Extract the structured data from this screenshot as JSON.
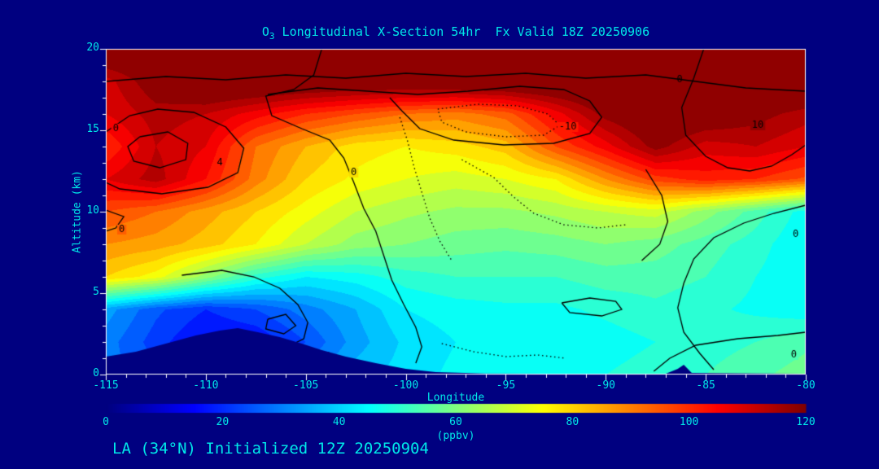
{
  "window": {
    "background": "#000080"
  },
  "colors": {
    "background": "#000080",
    "text_accent": "#00e8e8",
    "axis": "#ffffff",
    "contour": "#000000",
    "terrain": "#000080"
  },
  "chart_data": {
    "type": "heatmap",
    "title": "O3 Longitudinal X-Section 54hr  Fx Valid 18Z 20250906",
    "title_parts": {
      "prefix": "O",
      "sub": "3",
      "rest": " Longitudinal X-Section 54hr  Fx Valid 18Z 20250906"
    },
    "xlabel": "Longitude",
    "ylabel": "Altitude (km)",
    "footer": "LA (34°N) Initialized 12Z 20250904",
    "xlim": [
      -115,
      -80
    ],
    "ylim": [
      0,
      20
    ],
    "x_ticks": [
      -115,
      -110,
      -105,
      -100,
      -95,
      -90,
      -85,
      -80
    ],
    "y_ticks": [
      0,
      5,
      10,
      15,
      20
    ],
    "grid_lon": [
      -115,
      -112.5,
      -110,
      -107.5,
      -105,
      -102.5,
      -100,
      -97.5,
      -95,
      -92.5,
      -90,
      -87.5,
      -85,
      -82.5,
      -80
    ],
    "grid_alt": [
      0,
      2,
      4,
      6,
      8,
      10,
      12,
      14,
      16,
      18,
      20
    ],
    "values_ppbv": [
      [
        30,
        25,
        20,
        25,
        30,
        38,
        42,
        45,
        46,
        46,
        48,
        50,
        52,
        55,
        58
      ],
      [
        30,
        22,
        15,
        16,
        24,
        34,
        41,
        44,
        45,
        45,
        46,
        48,
        50,
        52,
        55
      ],
      [
        34,
        25,
        20,
        24,
        30,
        36,
        44,
        46,
        47,
        47,
        49,
        51,
        49,
        47,
        45
      ],
      [
        80,
        74,
        62,
        50,
        44,
        46,
        50,
        52,
        52,
        52,
        54,
        54,
        52,
        48,
        44
      ],
      [
        88,
        86,
        82,
        76,
        68,
        62,
        60,
        58,
        57,
        58,
        60,
        58,
        54,
        50,
        44
      ],
      [
        96,
        92,
        86,
        80,
        74,
        68,
        65,
        63,
        63,
        65,
        68,
        70,
        62,
        54,
        46
      ],
      [
        108,
        114,
        104,
        90,
        80,
        75,
        72,
        70,
        72,
        76,
        88,
        98,
        102,
        100,
        95
      ],
      [
        100,
        112,
        108,
        92,
        84,
        78,
        76,
        78,
        82,
        96,
        106,
        118,
        110,
        112,
        108
      ],
      [
        108,
        114,
        112,
        106,
        100,
        96,
        92,
        90,
        94,
        106,
        118,
        124,
        122,
        118,
        114
      ],
      [
        110,
        120,
        126,
        126,
        125,
        124,
        124,
        125,
        126,
        126,
        126,
        126,
        126,
        126,
        126
      ],
      [
        125,
        125,
        125,
        125,
        125,
        125,
        125,
        125,
        125,
        125,
        125,
        125,
        125,
        125,
        125
      ]
    ],
    "colorbar": {
      "min": 0,
      "max": 120,
      "ticks": [
        0,
        20,
        40,
        60,
        80,
        100,
        120
      ],
      "label": "(ppbv)",
      "colormap": "jet",
      "fill_step": 4
    },
    "terrain_profile": [
      [
        -115,
        0
      ],
      [
        -115,
        1.1
      ],
      [
        -113.5,
        1.4
      ],
      [
        -112,
        1.9
      ],
      [
        -110.5,
        2.4
      ],
      [
        -109.3,
        2.7
      ],
      [
        -108.4,
        2.85
      ],
      [
        -107.4,
        2.6
      ],
      [
        -106.3,
        2.3
      ],
      [
        -105.2,
        1.9
      ],
      [
        -104.2,
        1.5
      ],
      [
        -103,
        1.1
      ],
      [
        -101.5,
        0.7
      ],
      [
        -100,
        0.35
      ],
      [
        -98.5,
        0.15
      ],
      [
        -96,
        0.06
      ],
      [
        -90,
        0.04
      ],
      [
        -87,
        0.05
      ],
      [
        -86.4,
        0.35
      ],
      [
        -86.1,
        0.6
      ],
      [
        -85.7,
        0.1
      ],
      [
        -80,
        0.05
      ],
      [
        -80,
        0
      ]
    ],
    "contours": [
      {
        "style": "solid",
        "label": "0",
        "label_pos": [
          -114.5,
          15.1
        ],
        "points": [
          [
            -115,
            14.9
          ],
          [
            -113.8,
            15.9
          ],
          [
            -112.4,
            16.3
          ],
          [
            -110.6,
            16.1
          ],
          [
            -109.0,
            15.2
          ],
          [
            -108.1,
            13.9
          ],
          [
            -108.4,
            12.4
          ],
          [
            -109.9,
            11.5
          ],
          [
            -112.2,
            11.1
          ],
          [
            -114.3,
            11.4
          ],
          [
            -115,
            11.8
          ]
        ]
      },
      {
        "style": "solid",
        "points": [
          [
            -113.3,
            14.6
          ],
          [
            -111.9,
            14.9
          ],
          [
            -110.9,
            14.2
          ],
          [
            -111.0,
            13.2
          ],
          [
            -112.3,
            12.7
          ],
          [
            -113.6,
            13.1
          ],
          [
            -113.9,
            14.0
          ],
          [
            -113.3,
            14.6
          ]
        ]
      },
      {
        "style": "solid",
        "label": "0",
        "label_pos": [
          -102.6,
          12.4
        ],
        "points": [
          [
            -104.2,
            20
          ],
          [
            -104.6,
            18.4
          ],
          [
            -105.6,
            17.5
          ],
          [
            -107.0,
            17.1
          ],
          [
            -106.7,
            15.9
          ],
          [
            -105.2,
            15.1
          ],
          [
            -103.8,
            14.4
          ],
          [
            -103.1,
            13.3
          ],
          [
            -102.6,
            11.8
          ],
          [
            -102.1,
            10.2
          ],
          [
            -101.5,
            8.8
          ],
          [
            -101.1,
            7.3
          ],
          [
            -100.7,
            5.8
          ],
          [
            -100.1,
            4.3
          ],
          [
            -99.5,
            2.9
          ],
          [
            -99.2,
            1.7
          ],
          [
            -99.5,
            0.7
          ]
        ]
      },
      {
        "style": "solid",
        "points": [
          [
            -106.9,
            17.2
          ],
          [
            -104.4,
            17.6
          ],
          [
            -101.9,
            17.4
          ],
          [
            -99.4,
            17.2
          ],
          [
            -96.9,
            17.4
          ],
          [
            -94.3,
            17.7
          ],
          [
            -92.1,
            17.5
          ],
          [
            -90.8,
            16.8
          ],
          [
            -90.2,
            15.8
          ],
          [
            -90.8,
            14.8
          ],
          [
            -92.6,
            14.2
          ],
          [
            -95.1,
            14.1
          ],
          [
            -97.6,
            14.4
          ],
          [
            -99.3,
            15.1
          ],
          [
            -100.2,
            16.2
          ],
          [
            -100.8,
            17.0
          ]
        ]
      },
      {
        "style": "solid",
        "points": [
          [
            -115,
            18.0
          ],
          [
            -112,
            18.3
          ],
          [
            -109,
            18.1
          ],
          [
            -106,
            18.4
          ],
          [
            -103,
            18.2
          ],
          [
            -100,
            18.5
          ],
          [
            -97,
            18.3
          ],
          [
            -94,
            18.5
          ],
          [
            -91,
            18.2
          ],
          [
            -88,
            18.4
          ],
          [
            -85.5,
            18.0
          ],
          [
            -83,
            17.6
          ],
          [
            -80,
            17.4
          ]
        ]
      },
      {
        "style": "dotted",
        "label": "-10",
        "label_pos": [
          -91.9,
          15.2
        ],
        "points": [
          [
            -98.4,
            16.3
          ],
          [
            -96.4,
            16.6
          ],
          [
            -94.4,
            16.5
          ],
          [
            -92.9,
            16.0
          ],
          [
            -92.3,
            15.3
          ],
          [
            -93.1,
            14.7
          ],
          [
            -95.0,
            14.6
          ],
          [
            -97.0,
            14.9
          ],
          [
            -98.2,
            15.5
          ],
          [
            -98.4,
            16.3
          ]
        ]
      },
      {
        "style": "dotted",
        "points": [
          [
            -97.2,
            13.2
          ],
          [
            -95.6,
            12.1
          ],
          [
            -94.6,
            10.9
          ],
          [
            -93.6,
            9.9
          ],
          [
            -92.1,
            9.2
          ],
          [
            -90.4,
            9.0
          ],
          [
            -89.0,
            9.2
          ]
        ]
      },
      {
        "style": "dotted",
        "points": [
          [
            -100.3,
            15.8
          ],
          [
            -99.9,
            14.3
          ],
          [
            -99.6,
            12.8
          ],
          [
            -99.2,
            11.2
          ],
          [
            -98.8,
            9.6
          ],
          [
            -98.3,
            8.2
          ],
          [
            -97.7,
            7.0
          ]
        ]
      },
      {
        "style": "solid",
        "label": "10",
        "label_pos": [
          -82.4,
          15.3
        ],
        "points": [
          [
            -85.1,
            20
          ],
          [
            -85.6,
            18.2
          ],
          [
            -86.2,
            16.4
          ],
          [
            -86.0,
            14.7
          ],
          [
            -85.0,
            13.4
          ],
          [
            -83.9,
            12.7
          ],
          [
            -82.8,
            12.5
          ],
          [
            -81.7,
            12.8
          ],
          [
            -80.7,
            13.5
          ],
          [
            -80,
            14.1
          ]
        ]
      },
      {
        "style": "solid",
        "points": [
          [
            -88.0,
            12.6
          ],
          [
            -87.2,
            11.0
          ],
          [
            -86.9,
            9.4
          ],
          [
            -87.3,
            8.0
          ],
          [
            -88.2,
            7.0
          ]
        ]
      },
      {
        "style": "solid",
        "label": "0",
        "label_pos": [
          -80.5,
          8.6
        ],
        "points": [
          [
            -80,
            10.4
          ],
          [
            -81.6,
            9.9
          ],
          [
            -83.1,
            9.3
          ],
          [
            -84.6,
            8.4
          ],
          [
            -85.6,
            7.1
          ],
          [
            -86.1,
            5.6
          ],
          [
            -86.4,
            4.1
          ],
          [
            -86.1,
            2.6
          ],
          [
            -85.3,
            1.3
          ],
          [
            -84.6,
            0.3
          ]
        ]
      },
      {
        "style": "solid",
        "label": "0",
        "label_pos": [
          -103.9,
          1.1
        ],
        "points": [
          [
            -111.2,
            6.1
          ],
          [
            -109.2,
            6.4
          ],
          [
            -107.6,
            6.0
          ],
          [
            -106.3,
            5.3
          ],
          [
            -105.4,
            4.3
          ],
          [
            -104.9,
            3.2
          ],
          [
            -105.1,
            2.2
          ],
          [
            -106.1,
            1.6
          ],
          [
            -107.6,
            1.8
          ],
          [
            -109.1,
            2.6
          ]
        ]
      },
      {
        "style": "solid",
        "points": [
          [
            -106.9,
            3.4
          ],
          [
            -106.0,
            3.7
          ],
          [
            -105.5,
            3.0
          ],
          [
            -106.1,
            2.5
          ],
          [
            -107.0,
            2.8
          ],
          [
            -106.9,
            3.4
          ]
        ]
      },
      {
        "style": "solid",
        "label": "0",
        "label_pos": [
          -114.2,
          8.9
        ],
        "points": [
          [
            -115,
            10.1
          ],
          [
            -114.1,
            9.7
          ],
          [
            -114.5,
            9.0
          ],
          [
            -115,
            8.8
          ]
        ]
      },
      {
        "style": "solid",
        "points": [
          [
            -92.2,
            4.4
          ],
          [
            -90.8,
            4.7
          ],
          [
            -89.5,
            4.5
          ],
          [
            -89.2,
            4.0
          ],
          [
            -90.2,
            3.6
          ],
          [
            -91.8,
            3.8
          ],
          [
            -92.2,
            4.4
          ]
        ]
      },
      {
        "style": "dotted",
        "points": [
          [
            -98.2,
            1.9
          ],
          [
            -96.6,
            1.4
          ],
          [
            -95.0,
            1.1
          ],
          [
            -93.4,
            1.2
          ],
          [
            -92.0,
            1.0
          ]
        ]
      },
      {
        "style": "solid",
        "label": "0",
        "label_pos": [
          -80.6,
          1.2
        ],
        "points": [
          [
            -87.6,
            0.2
          ],
          [
            -86.8,
            1.0
          ],
          [
            -85.5,
            1.8
          ],
          [
            -83.4,
            2.2
          ],
          [
            -81.4,
            2.4
          ],
          [
            -80,
            2.6
          ]
        ]
      }
    ],
    "annotations": [
      {
        "text": "4",
        "pos": [
          -109.3,
          13.0
        ]
      },
      {
        "text": "0",
        "pos": [
          -86.3,
          18.1
        ]
      }
    ]
  }
}
